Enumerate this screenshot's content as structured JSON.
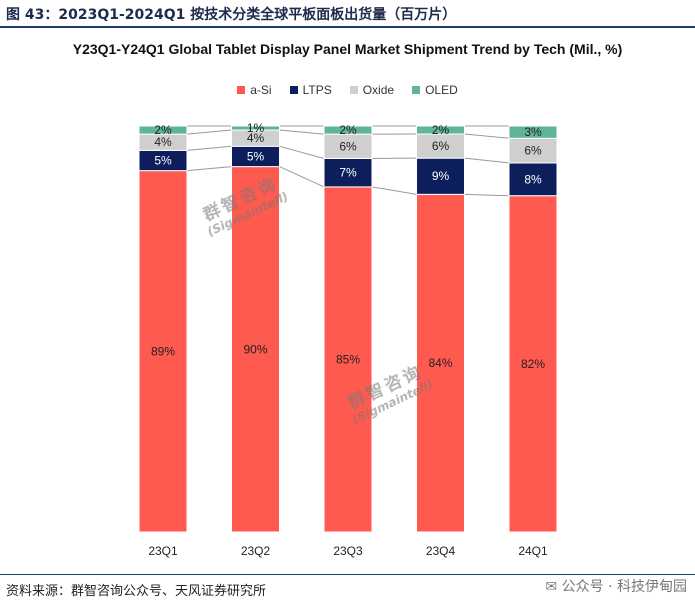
{
  "figure_title": "图 43：2023Q1-2024Q1 按技术分类全球平板面板出货量（百万片）",
  "source_text": "资料来源：群智咨询公众号、天风证券研究所",
  "footer_brand": "公众号 · 科技伊甸园",
  "watermark": {
    "line1": "群智咨询",
    "line2": "(Sigmaintell)"
  },
  "chart_data": {
    "type": "bar",
    "stacked": true,
    "normalized": true,
    "title": "Y23Q1-Y24Q1 Global Tablet Display Panel Market Shipment Trend by Tech (Mil., %)",
    "categories": [
      "23Q1",
      "23Q2",
      "23Q3",
      "23Q4",
      "24Q1"
    ],
    "legend_position": "top",
    "grid": false,
    "series": [
      {
        "name": "a-Si",
        "color": "#ff5a4f",
        "values": [
          89,
          90,
          85,
          84,
          82
        ],
        "labels": [
          "89%",
          "90%",
          "85%",
          "84%",
          "82%"
        ]
      },
      {
        "name": "LTPS",
        "color": "#0c1f5c",
        "values": [
          5,
          5,
          7,
          9,
          8
        ],
        "labels": [
          "5%",
          "5%",
          "7%",
          "9%",
          "8%"
        ]
      },
      {
        "name": "Oxide",
        "color": "#cfcfcf",
        "values": [
          4,
          4,
          6,
          6,
          6
        ],
        "labels": [
          "4%",
          "4%",
          "6%",
          "6%",
          "6%"
        ]
      },
      {
        "name": "OLED",
        "color": "#5fb59a",
        "values": [
          2,
          1,
          2,
          2,
          3
        ],
        "labels": [
          "2%",
          "1%",
          "2%",
          "2%",
          "3%"
        ]
      }
    ]
  }
}
